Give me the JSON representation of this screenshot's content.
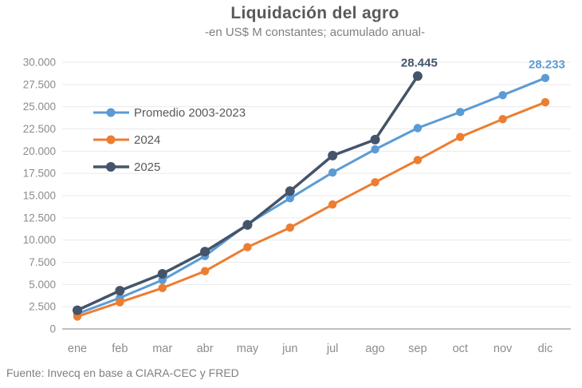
{
  "header": {
    "title": "Liquidación del agro",
    "subtitle": "-en US$ M constantes; acumulado anual-"
  },
  "footer": {
    "source": "Fuente: Invecq en base a CIARA-CEC y FRED"
  },
  "colors": {
    "blue": "#5B9BD5",
    "orange": "#ED7D31",
    "navy": "#44546A",
    "grid": "#EAEAEA",
    "axis_line": "#BFBFBF",
    "axis_text": "#8C8C8C",
    "title_text": "#595959"
  },
  "chart_data": {
    "type": "line",
    "title": "Liquidación del agro",
    "subtitle": "-en US$ M constantes; acumulado anual-",
    "xlabel": "",
    "ylabel": "US$ M constantes, acumulado anual",
    "categories": [
      "ene",
      "feb",
      "mar",
      "abr",
      "may",
      "jun",
      "jul",
      "ago",
      "sep",
      "oct",
      "nov",
      "dic"
    ],
    "y_ticks": [
      "0",
      "2.500",
      "5.000",
      "7.500",
      "10.000",
      "12.500",
      "15.000",
      "17.500",
      "20.000",
      "22.500",
      "25.000",
      "27.500",
      "30.000"
    ],
    "ylim": [
      0,
      30000
    ],
    "grid": "horizontal",
    "legend_position": "top-left-inside",
    "series": [
      {
        "name": "Promedio 2003-2023",
        "color": "#5B9BD5",
        "values": [
          1700,
          3500,
          5500,
          8200,
          11800,
          14700,
          17600,
          20200,
          22600,
          24400,
          26300,
          28233
        ]
      },
      {
        "name": "2024",
        "color": "#ED7D31",
        "values": [
          1400,
          3000,
          4600,
          6500,
          9200,
          11400,
          14000,
          16500,
          19000,
          21600,
          23600,
          25500
        ]
      },
      {
        "name": "2025",
        "color": "#44546A",
        "values": [
          2100,
          4300,
          6200,
          8700,
          11700,
          15500,
          19500,
          21300,
          28445
        ]
      }
    ],
    "annotations": [
      {
        "series": 2,
        "month_index": 8,
        "label": "28.445",
        "color": "#44546A"
      },
      {
        "series": 0,
        "month_index": 11,
        "label": "28.233",
        "color": "#5B9BD5"
      }
    ]
  }
}
